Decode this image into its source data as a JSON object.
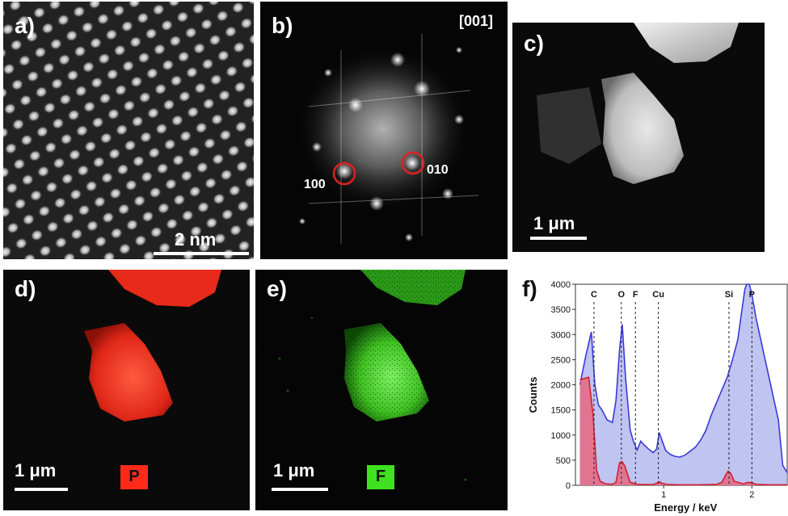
{
  "panels": {
    "a": {
      "label": "a)",
      "scale": "2 nm"
    },
    "b": {
      "label": "b)",
      "zone_axis": "[001]",
      "spot1": "100",
      "spot2": "010",
      "circle_color": "#e02020"
    },
    "c": {
      "label": "c)",
      "scale": "1 μm"
    },
    "d": {
      "label": "d)",
      "scale": "1 μm",
      "element": "P",
      "element_color": "#ff2a1a"
    },
    "e": {
      "label": "e)",
      "scale": "1 μm",
      "element": "F",
      "element_color": "#3ee21f"
    },
    "f": {
      "label": "f)"
    }
  },
  "chart_data": {
    "type": "line",
    "xlabel": "Energy / keV",
    "ylabel": "Counts",
    "xlim": [
      0,
      2.4
    ],
    "ylim": [
      0,
      4000
    ],
    "xticks": [
      "1",
      "2"
    ],
    "yticks": [
      "0",
      "500",
      "1000",
      "1500",
      "2000",
      "2500",
      "3000",
      "3500",
      "4000"
    ],
    "series": [
      {
        "color": "#3a3ad8",
        "fill": "#aab0ec",
        "x": [
          0.05,
          0.12,
          0.18,
          0.22,
          0.26,
          0.3,
          0.36,
          0.42,
          0.46,
          0.5,
          0.53,
          0.57,
          0.62,
          0.66,
          0.7,
          0.74,
          0.78,
          0.83,
          0.88,
          0.92,
          0.95,
          0.98,
          1.02,
          1.07,
          1.12,
          1.18,
          1.24,
          1.3,
          1.36,
          1.42,
          1.48,
          1.54,
          1.6,
          1.66,
          1.72,
          1.78,
          1.84,
          1.88,
          1.92,
          1.94,
          1.97,
          2.0,
          2.05,
          2.1,
          2.15,
          2.2,
          2.25,
          2.3,
          2.35,
          2.4
        ],
        "y": [
          2000,
          2600,
          3050,
          2000,
          1600,
          1500,
          1300,
          1250,
          1700,
          2700,
          3200,
          2100,
          1100,
          860,
          700,
          880,
          800,
          720,
          650,
          720,
          1050,
          900,
          700,
          620,
          580,
          560,
          600,
          680,
          760,
          900,
          1100,
          1400,
          1650,
          1900,
          2150,
          2500,
          2900,
          3400,
          3900,
          4000,
          4000,
          3800,
          3300,
          2900,
          2500,
          2100,
          1700,
          1300,
          400,
          250
        ]
      },
      {
        "color": "#d02030",
        "fill": "#e8627a",
        "x": [
          0.05,
          0.15,
          0.2,
          0.24,
          0.28,
          0.34,
          0.42,
          0.46,
          0.5,
          0.53,
          0.56,
          0.62,
          0.7,
          0.8,
          0.88,
          0.92,
          0.95,
          0.98,
          1.05,
          1.2,
          1.4,
          1.6,
          1.66,
          1.7,
          1.73,
          1.76,
          1.8,
          1.9,
          1.96,
          2.0,
          2.05,
          2.2,
          2.4
        ],
        "y": [
          2100,
          2150,
          1400,
          300,
          80,
          30,
          20,
          60,
          450,
          470,
          380,
          60,
          20,
          15,
          15,
          40,
          70,
          40,
          15,
          10,
          10,
          20,
          60,
          200,
          280,
          240,
          80,
          30,
          60,
          50,
          20,
          10,
          10
        ]
      }
    ],
    "annotations": [
      {
        "text": "C",
        "x": 0.21
      },
      {
        "text": "O",
        "x": 0.52
      },
      {
        "text": "F",
        "x": 0.68
      },
      {
        "text": "Cu",
        "x": 0.94
      },
      {
        "text": "Si",
        "x": 1.74
      },
      {
        "text": "P",
        "x": 2.0
      }
    ]
  }
}
